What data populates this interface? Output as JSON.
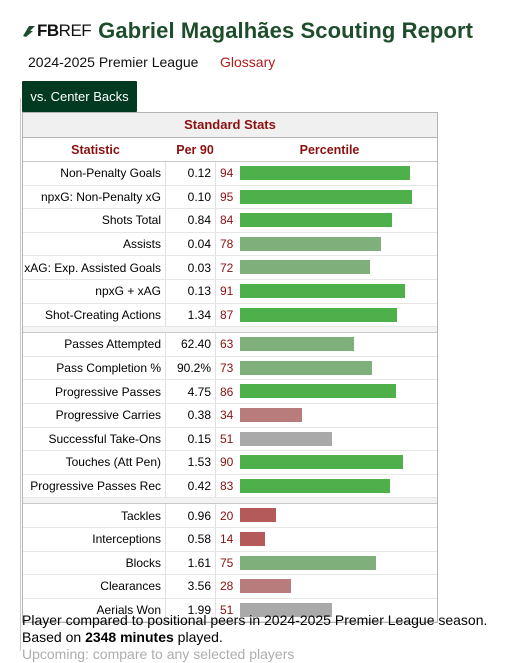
{
  "header": {
    "logo_fb": "FB",
    "logo_ref": "REF",
    "title": "Gabriel Magalhães Scouting Report"
  },
  "subheader": {
    "season": "2024-2025 Premier League",
    "glossary": "Glossary"
  },
  "tab": {
    "label": "vs. Center Backs"
  },
  "table": {
    "caption": "Standard Stats",
    "columns": [
      "Statistic",
      "Per 90",
      "Percentile"
    ],
    "groups": [
      [
        {
          "stat": "Non-Penalty Goals",
          "per90": "0.12",
          "pct": 94
        },
        {
          "stat": "npxG: Non-Penalty xG",
          "per90": "0.10",
          "pct": 95
        },
        {
          "stat": "Shots Total",
          "per90": "0.84",
          "pct": 84
        },
        {
          "stat": "Assists",
          "per90": "0.04",
          "pct": 78
        },
        {
          "stat": "xAG: Exp. Assisted Goals",
          "per90": "0.03",
          "pct": 72
        },
        {
          "stat": "npxG + xAG",
          "per90": "0.13",
          "pct": 91
        },
        {
          "stat": "Shot-Creating Actions",
          "per90": "1.34",
          "pct": 87
        }
      ],
      [
        {
          "stat": "Passes Attempted",
          "per90": "62.40",
          "pct": 63
        },
        {
          "stat": "Pass Completion %",
          "per90": "90.2%",
          "pct": 73
        },
        {
          "stat": "Progressive Passes",
          "per90": "4.75",
          "pct": 86
        },
        {
          "stat": "Progressive Carries",
          "per90": "0.38",
          "pct": 34
        },
        {
          "stat": "Successful Take-Ons",
          "per90": "0.15",
          "pct": 51
        },
        {
          "stat": "Touches (Att Pen)",
          "per90": "1.53",
          "pct": 90
        },
        {
          "stat": "Progressive Passes Rec",
          "per90": "0.42",
          "pct": 83
        }
      ],
      [
        {
          "stat": "Tackles",
          "per90": "0.96",
          "pct": 20
        },
        {
          "stat": "Interceptions",
          "per90": "0.58",
          "pct": 14
        },
        {
          "stat": "Blocks",
          "per90": "1.61",
          "pct": 75
        },
        {
          "stat": "Clearances",
          "per90": "3.56",
          "pct": 28
        },
        {
          "stat": "Aerials Won",
          "per90": "1.99",
          "pct": 51
        }
      ]
    ]
  },
  "colors": {
    "title_green": "#1e4d2b",
    "tab_bg": "#013a20",
    "accent_red": "#8b1010",
    "bar_high": "#4db04a",
    "bar_mid": "#7fb07b",
    "bar_neutral": "#a9a9a9",
    "bar_low": "#b87c7c",
    "bar_very_low": "#b45a5a"
  },
  "note": {
    "line1": "Player compared to positional peers in 2024-2025 Premier League season.",
    "line2_prefix": "Based on ",
    "line2_bold": "2348 minutes",
    "line2_suffix": " played.",
    "line3": "Upcoming: compare to any selected players"
  }
}
